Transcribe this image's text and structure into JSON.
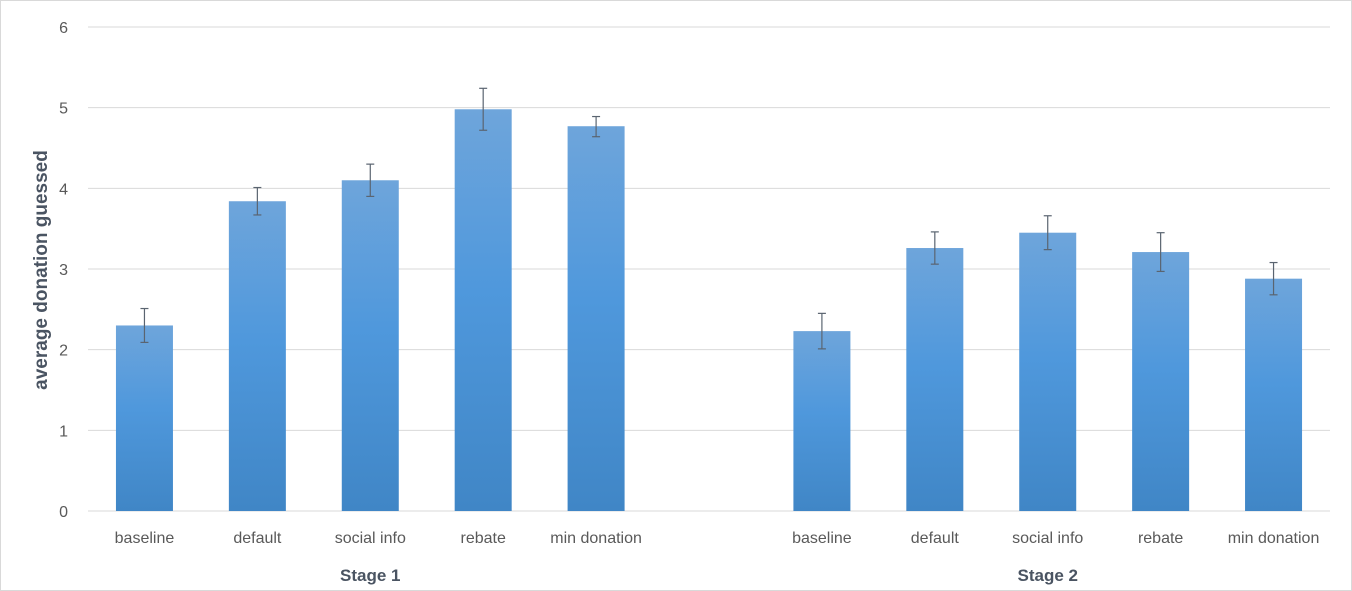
{
  "chart_data": {
    "type": "bar",
    "ylabel": "average donation guessed",
    "xlabel": "",
    "ylim": [
      0,
      6
    ],
    "yticks": [
      0,
      1,
      2,
      3,
      4,
      5,
      6
    ],
    "grid": true,
    "legend": "none",
    "bar_color_top": "#6ea5db",
    "bar_color_mid": "#4f98dc",
    "bar_color_bottom": "#4086c6",
    "groups": [
      {
        "name": "Stage 1",
        "categories": [
          "baseline",
          "default",
          "social info",
          "rebate",
          "min donation"
        ],
        "values": [
          2.3,
          3.84,
          4.1,
          4.98,
          4.77
        ],
        "error_low": [
          2.09,
          3.67,
          3.9,
          4.72,
          4.64
        ],
        "error_high": [
          2.51,
          4.01,
          4.3,
          5.24,
          4.89
        ]
      },
      {
        "name": "Stage 2",
        "categories": [
          "baseline",
          "default",
          "social info",
          "rebate",
          "min donation"
        ],
        "values": [
          2.23,
          3.26,
          3.45,
          3.21,
          2.88
        ],
        "error_low": [
          2.01,
          3.06,
          3.24,
          2.97,
          2.68
        ],
        "error_high": [
          2.45,
          3.46,
          3.66,
          3.45,
          3.08
        ]
      }
    ]
  }
}
